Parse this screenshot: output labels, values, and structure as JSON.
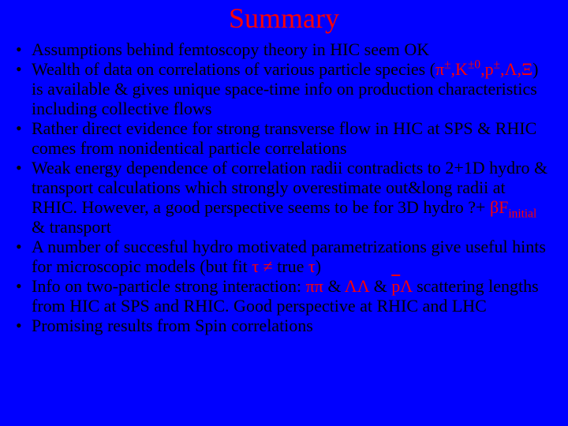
{
  "title": {
    "text": "Summary",
    "color": "#ff0000",
    "fontsize": 36
  },
  "colors": {
    "background": "#0000ff",
    "body_text": "#000000",
    "accent": "#ff0000"
  },
  "typography": {
    "family": "Times New Roman",
    "body_fontsize": 22,
    "line_height": 25
  },
  "bullets": [
    {
      "html": "Assumptions behind femtoscopy theory in HIC seem OK"
    },
    {
      "html": "Wealth of data on correlations of various particle species (<span class='red'>π<span class='sup'>±</span>,K<span class='sup'>±0</span>,p<span class='sup'>±</span>,Λ,Ξ</span>) is available &amp; gives unique space-time info on production characteristics including collective flows"
    },
    {
      "html": "Rather direct evidence for strong transverse flow in HIC at SPS &amp; RHIC comes from nonidentical particle correlations"
    },
    {
      "html": "Weak energy dependence of correlation radii contradicts to 2+1D hydro &amp; transport calculations which strongly overestimate out&amp;long radii at RHIC. However, a good perspective seems to be for 3D hydro ?+ <span class='red'>βF<span class='sub'>initial</span></span> &amp; transport"
    },
    {
      "html": "A number of succesful hydro motivated parametrizations give useful hints for microscopic models (but  fit <span class='red'>τ ≠</span> true <span class='red'>τ</span>)"
    },
    {
      "html": "Info on two-particle strong interaction: <span class='red'>ππ</span> &amp; <span class='red'>ΛΛ</span> &amp; <span class='red'><span class='overbar'>p</span>Λ</span> scattering lengths from HIC at SPS and RHIC. Good perspective at RHIC and LHC"
    },
    {
      "html": "Promising results from Spin correlations"
    }
  ]
}
